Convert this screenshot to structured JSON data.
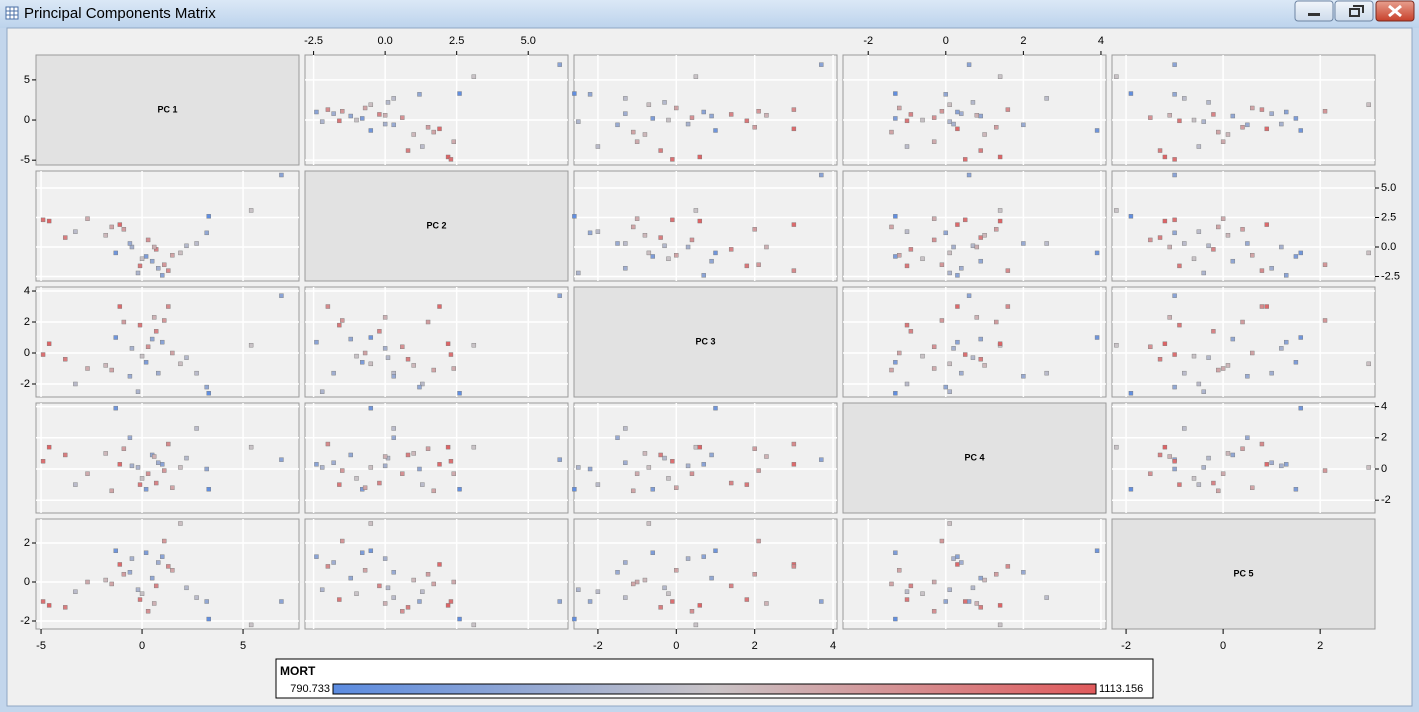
{
  "chart_data": {
    "type": "scatter-matrix",
    "title": "Principal Components Matrix",
    "grid": true,
    "variables": [
      {
        "name": "PC 1",
        "xlim": [
          -5.25,
          7.77
        ],
        "ylim": [
          -5.6,
          8.1
        ],
        "xticks": [
          -5,
          0,
          5
        ],
        "yticks": [
          -5,
          0,
          5
        ],
        "values": [
          6.9,
          5.4,
          -4.6,
          -4.9,
          -3.8,
          -2.7,
          -3.3,
          -1.1,
          -0.9,
          -1.3,
          -0.5,
          0.2,
          0.5,
          1.1,
          1.3,
          1.9,
          0.8,
          -0.2,
          2.7,
          3.3,
          3.2,
          0.0,
          1.5,
          -0.6,
          0.7,
          -1.8,
          0.3,
          -0.1,
          2.2,
          1.0,
          -1.5,
          0.6
        ]
      },
      {
        "name": "PC 2",
        "xlim": [
          -2.8,
          6.39
        ],
        "ylim": [
          -2.88,
          6.44
        ],
        "xticks": [
          -2.5,
          {
            "value": 0,
            "label": "0.0"
          },
          2.5,
          {
            "value": 5,
            "label": "5.0"
          }
        ],
        "yticks": [
          -2.5,
          {
            "value": 0,
            "label": "0.0"
          },
          2.5,
          {
            "value": 5,
            "label": "5.0"
          }
        ],
        "values": [
          6.1,
          3.1,
          2.2,
          2.3,
          0.8,
          2.4,
          1.3,
          1.9,
          1.5,
          -0.5,
          0.0,
          -0.8,
          -1.2,
          -1.5,
          -2.0,
          -0.5,
          -1.8,
          -2.2,
          0.3,
          2.6,
          1.2,
          -1.0,
          -0.7,
          0.3,
          -0.2,
          1.0,
          0.6,
          -1.6,
          0.1,
          -2.4,
          1.7,
          0.0
        ]
      },
      {
        "name": "PC 3",
        "xlim": [
          -2.61,
          4.1
        ],
        "ylim": [
          -2.84,
          4.26
        ],
        "xticks": [
          -2,
          0,
          2,
          4
        ],
        "yticks": [
          -2,
          0,
          2,
          4
        ],
        "values": [
          3.7,
          0.5,
          0.6,
          -0.1,
          -0.4,
          -1.0,
          -2.0,
          3.0,
          2.0,
          1.0,
          0.3,
          -0.6,
          0.9,
          2.1,
          3.0,
          -0.7,
          -1.3,
          -2.5,
          -1.3,
          -2.6,
          -2.2,
          -0.2,
          0.0,
          -1.5,
          1.4,
          -0.8,
          0.4,
          1.8,
          -0.3,
          0.7,
          -1.1,
          2.3
        ]
      },
      {
        "name": "PC 4",
        "xlim": [
          -2.65,
          4.13
        ],
        "ylim": [
          -2.82,
          4.23
        ],
        "xticks": [
          -2,
          0,
          2,
          4
        ],
        "yticks": [
          -2,
          0,
          2,
          4
        ],
        "values": [
          0.6,
          1.4,
          1.4,
          0.5,
          0.9,
          -0.3,
          -1.0,
          0.3,
          1.3,
          3.9,
          0.2,
          -1.3,
          0.9,
          -0.1,
          1.6,
          0.1,
          0.4,
          0.1,
          2.6,
          -1.3,
          0.0,
          -0.6,
          -1.2,
          2.0,
          -0.9,
          1.0,
          -0.3,
          -1.0,
          0.7,
          0.3,
          -1.4,
          0.8
        ]
      },
      {
        "name": "PC 5",
        "xlim": [
          -2.29,
          3.13
        ],
        "ylim": [
          -2.41,
          3.23
        ],
        "xticks": [
          -2,
          0,
          2
        ],
        "yticks": [
          -2,
          0,
          2
        ],
        "values": [
          -1.0,
          -2.2,
          -1.2,
          -1.0,
          -1.3,
          0.0,
          -0.5,
          0.9,
          0.4,
          1.6,
          1.2,
          1.5,
          0.2,
          2.1,
          0.8,
          3.0,
          1.0,
          -0.4,
          -0.8,
          -1.9,
          -1.0,
          -0.6,
          0.6,
          0.5,
          -0.2,
          0.1,
          -1.5,
          -0.9,
          -0.3,
          1.3,
          -0.1,
          -1.1
        ]
      }
    ],
    "color_variable": {
      "name": "MORT",
      "min": 790.733,
      "max": 1113.156,
      "color_low": "#5b8be0",
      "color_mid": "#c9c3c6",
      "color_high": "#e05a5c",
      "values": [
        860,
        950,
        1100,
        1080,
        1060,
        990,
        930,
        1090,
        1010,
        820,
        900,
        840,
        870,
        1020,
        1040,
        960,
        890,
        910,
        930,
        800,
        870,
        950,
        1000,
        880,
        1050,
        970,
        1030,
        1070,
        920,
        860,
        1000,
        980
      ]
    }
  }
}
